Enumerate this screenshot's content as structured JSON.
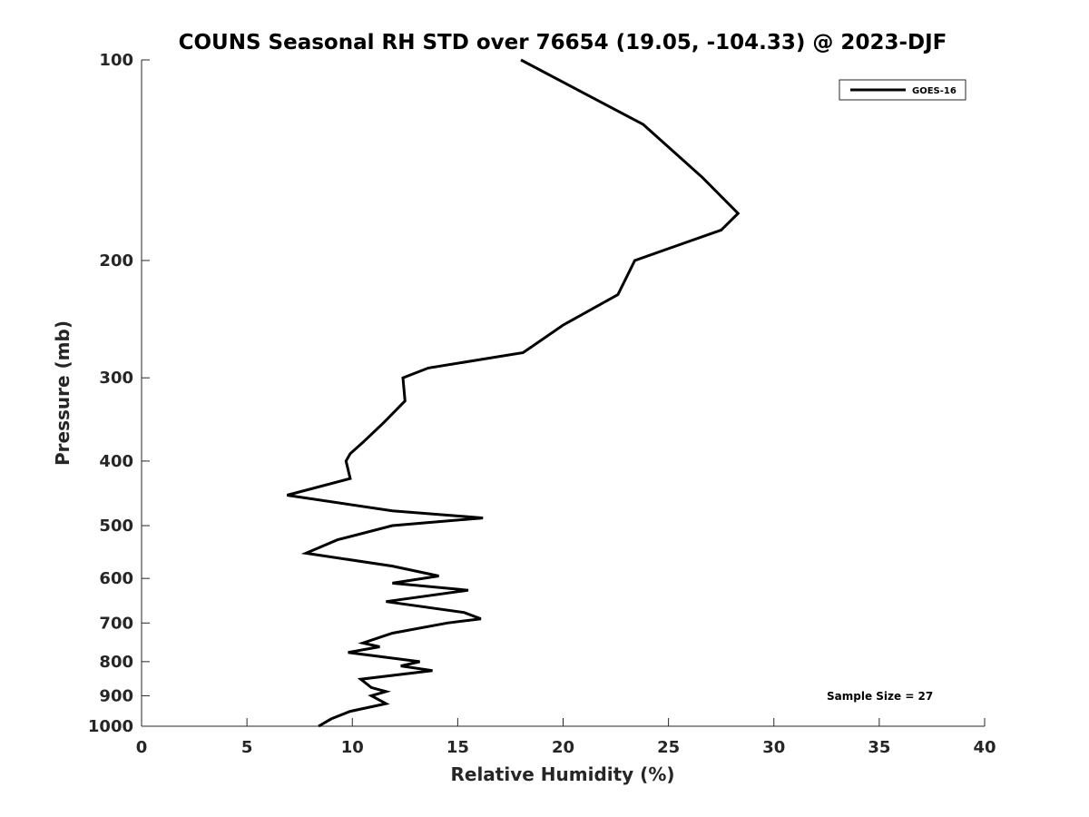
{
  "chart_data": {
    "type": "line",
    "title": "COUNS Seasonal RH STD over 76654 (19.05, -104.33) @ 2023-DJF",
    "xlabel": "Relative Humidity (%)",
    "ylabel": "Pressure (mb)",
    "xlim": [
      0,
      40
    ],
    "ylim": [
      1000,
      100
    ],
    "y_scale": "log",
    "y_reversed": true,
    "grid": false,
    "legend_position": "top-right",
    "x_ticks": [
      0,
      5,
      10,
      15,
      20,
      25,
      30,
      35,
      40
    ],
    "x_tick_labels": [
      "0",
      "5",
      "10",
      "15",
      "20",
      "25",
      "30",
      "35",
      "40"
    ],
    "y_ticks": [
      100,
      200,
      300,
      400,
      500,
      600,
      700,
      800,
      900,
      1000
    ],
    "y_tick_labels": [
      "100",
      "200",
      "300",
      "400",
      "500",
      "600",
      "700",
      "800",
      "900",
      "1000"
    ],
    "series": [
      {
        "name": "GOES-16",
        "color": "#000000",
        "points": [
          [
            18.0,
            100
          ],
          [
            23.8,
            125
          ],
          [
            26.6,
            150
          ],
          [
            28.3,
            170
          ],
          [
            27.5,
            180
          ],
          [
            23.4,
            200
          ],
          [
            22.6,
            225
          ],
          [
            20.0,
            250
          ],
          [
            18.1,
            275
          ],
          [
            13.6,
            290
          ],
          [
            12.4,
            300
          ],
          [
            12.5,
            325
          ],
          [
            11.5,
            350
          ],
          [
            10.5,
            375
          ],
          [
            9.9,
            390
          ],
          [
            9.7,
            400
          ],
          [
            9.9,
            425
          ],
          [
            6.9,
            450
          ],
          [
            11.9,
            475
          ],
          [
            16.2,
            487
          ],
          [
            11.9,
            500
          ],
          [
            9.3,
            525
          ],
          [
            7.8,
            550
          ],
          [
            11.9,
            575
          ],
          [
            14.1,
            595
          ],
          [
            11.9,
            610
          ],
          [
            15.5,
            625
          ],
          [
            11.6,
            650
          ],
          [
            15.3,
            675
          ],
          [
            16.1,
            690
          ],
          [
            14.5,
            700
          ],
          [
            11.9,
            725
          ],
          [
            10.5,
            750
          ],
          [
            11.3,
            760
          ],
          [
            9.8,
            775
          ],
          [
            13.2,
            800
          ],
          [
            12.3,
            812
          ],
          [
            13.8,
            825
          ],
          [
            10.4,
            850
          ],
          [
            10.9,
            875
          ],
          [
            11.6,
            887
          ],
          [
            10.9,
            900
          ],
          [
            11.6,
            925
          ],
          [
            9.9,
            950
          ],
          [
            9.0,
            975
          ],
          [
            8.4,
            1000
          ]
        ]
      }
    ],
    "annotations": [
      "Sample Size = 27"
    ]
  }
}
